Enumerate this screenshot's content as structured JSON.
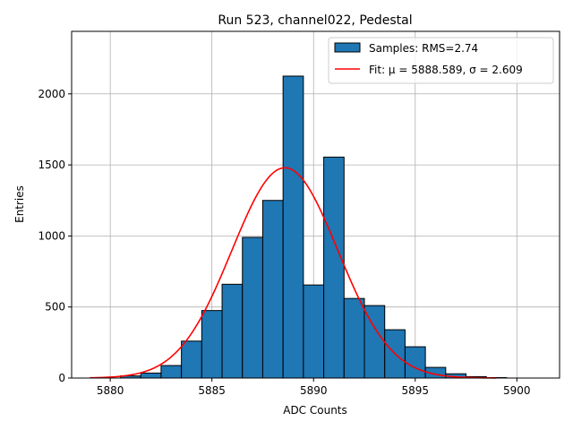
{
  "chart_data": {
    "type": "bar",
    "title": "Run 523, channel022, Pedestal",
    "xlabel": "ADC Counts",
    "ylabel": "Entries",
    "xlim": [
      5878.1,
      5902.1
    ],
    "ylim": [
      0,
      2440
    ],
    "xticks": [
      5880,
      5885,
      5890,
      5895,
      5900
    ],
    "yticks": [
      0,
      500,
      1000,
      1500,
      2000
    ],
    "grid": true,
    "legend_position": "upper right",
    "bin_width": 1,
    "bins": [
      {
        "left": 5879.5,
        "value": 0
      },
      {
        "left": 5880.5,
        "value": 15
      },
      {
        "left": 5881.5,
        "value": 35
      },
      {
        "left": 5882.5,
        "value": 88
      },
      {
        "left": 5883.5,
        "value": 260
      },
      {
        "left": 5884.5,
        "value": 475
      },
      {
        "left": 5885.5,
        "value": 660
      },
      {
        "left": 5886.5,
        "value": 990
      },
      {
        "left": 5887.5,
        "value": 1250
      },
      {
        "left": 5888.5,
        "value": 2125
      },
      {
        "left": 5889.5,
        "value": 655
      },
      {
        "left": 5890.5,
        "value": 1555
      },
      {
        "left": 5891.5,
        "value": 560
      },
      {
        "left": 5892.5,
        "value": 510
      },
      {
        "left": 5893.5,
        "value": 340
      },
      {
        "left": 5894.5,
        "value": 220
      },
      {
        "left": 5895.5,
        "value": 75
      },
      {
        "left": 5896.5,
        "value": 30
      },
      {
        "left": 5897.5,
        "value": 10
      },
      {
        "left": 5898.5,
        "value": 3
      }
    ],
    "fit": {
      "mu": 5888.589,
      "sigma": 2.609,
      "amplitude": 1480,
      "x_range": [
        5879,
        5899
      ]
    },
    "series": [
      {
        "name": "Samples: RMS=2.74",
        "type": "bar",
        "color": "#1f77b4",
        "edgecolor": "#000000"
      },
      {
        "name": "Fit: μ = 5888.589, σ = 2.609",
        "type": "line",
        "color": "#ff0000"
      }
    ]
  }
}
